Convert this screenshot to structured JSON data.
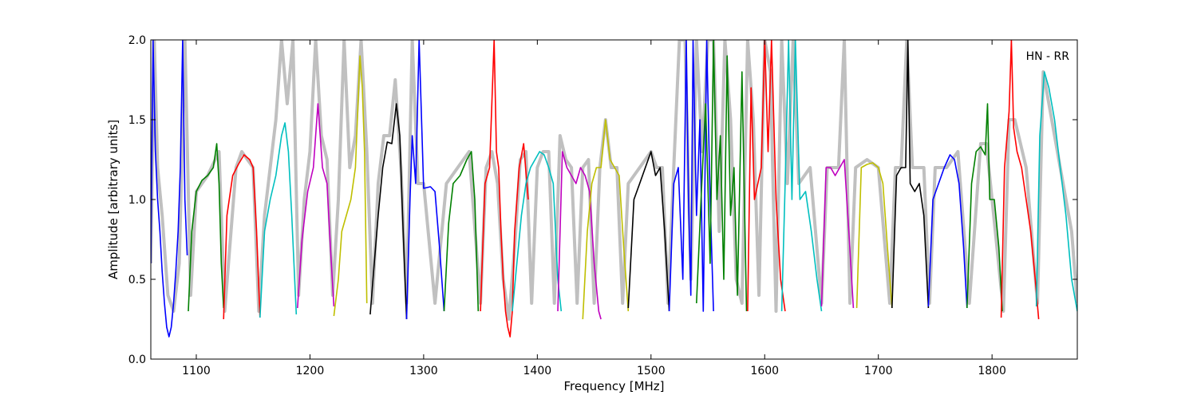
{
  "chart_data": {
    "type": "line",
    "title": "",
    "annotation": "HN - RR",
    "xlabel": "Frequency [MHz]",
    "ylabel": "Amplitude [arbitrary units]",
    "xlim": [
      1060,
      1875
    ],
    "ylim": [
      0.0,
      2.0
    ],
    "xticks": [
      1100,
      1200,
      1300,
      1400,
      1500,
      1600,
      1700,
      1800
    ],
    "yticks": [
      0.0,
      0.5,
      1.0,
      1.5,
      2.0
    ],
    "ytick_labels": [
      "0.0",
      "0.5",
      "1.0",
      "1.5",
      "2.0"
    ],
    "grid": false,
    "legend": "none",
    "background_series": {
      "color": "#c0c0c0",
      "description_hidden": true,
      "x": [
        1060,
        1063,
        1066,
        1070,
        1075,
        1080,
        1085,
        1090,
        1095,
        1100,
        1110,
        1120,
        1125,
        1135,
        1140,
        1150,
        1155,
        1160,
        1165,
        1170,
        1175,
        1180,
        1185,
        1190,
        1195,
        1200,
        1205,
        1210,
        1215,
        1220,
        1225,
        1230,
        1235,
        1240,
        1245,
        1250,
        1255,
        1260,
        1265,
        1270,
        1275,
        1280,
        1285,
        1290,
        1295,
        1300,
        1310,
        1320,
        1330,
        1340,
        1350,
        1355,
        1360,
        1365,
        1370,
        1375,
        1380,
        1385,
        1390,
        1395,
        1400,
        1405,
        1410,
        1415,
        1420,
        1425,
        1430,
        1435,
        1440,
        1445,
        1450,
        1455,
        1460,
        1465,
        1470,
        1475,
        1480,
        1490,
        1500,
        1505,
        1510,
        1515,
        1520,
        1525,
        1530,
        1535,
        1540,
        1545,
        1550,
        1555,
        1560,
        1565,
        1570,
        1575,
        1580,
        1585,
        1590,
        1595,
        1600,
        1605,
        1610,
        1615,
        1620,
        1625,
        1630,
        1640,
        1650,
        1655,
        1660,
        1665,
        1670,
        1675,
        1680,
        1690,
        1700,
        1710,
        1715,
        1720,
        1725,
        1730,
        1740,
        1745,
        1750,
        1760,
        1770,
        1780,
        1790,
        1795,
        1800,
        1810,
        1815,
        1820,
        1830,
        1840,
        1845,
        1850,
        1860,
        1870,
        1875
      ],
      "y": [
        0.6,
        2.0,
        1.2,
        0.9,
        0.4,
        0.3,
        0.6,
        2.0,
        0.4,
        1.05,
        1.15,
        1.3,
        0.3,
        1.2,
        1.3,
        1.2,
        0.3,
        0.9,
        1.2,
        1.5,
        2.0,
        1.6,
        2.0,
        0.4,
        1.0,
        1.3,
        2.0,
        1.4,
        1.25,
        0.4,
        1.0,
        2.0,
        1.2,
        1.4,
        2.0,
        1.3,
        0.35,
        1.1,
        1.4,
        1.4,
        1.75,
        1.2,
        0.35,
        2.0,
        1.1,
        1.1,
        0.35,
        1.1,
        1.2,
        1.3,
        0.35,
        1.2,
        1.3,
        1.1,
        0.5,
        0.25,
        0.7,
        1.25,
        1.3,
        0.35,
        1.2,
        1.3,
        1.3,
        0.35,
        1.4,
        1.25,
        1.2,
        0.35,
        1.2,
        1.25,
        0.35,
        1.2,
        1.5,
        1.2,
        1.2,
        0.35,
        1.1,
        1.2,
        1.3,
        1.2,
        1.2,
        0.35,
        1.2,
        2.0,
        2.0,
        0.5,
        2.0,
        1.3,
        2.0,
        2.0,
        0.8,
        2.0,
        1.5,
        0.5,
        0.35,
        2.0,
        1.5,
        0.4,
        2.0,
        1.8,
        0.3,
        2.0,
        1.1,
        2.0,
        1.1,
        1.2,
        0.35,
        1.2,
        1.2,
        1.2,
        2.0,
        0.35,
        1.2,
        1.25,
        1.2,
        0.35,
        1.2,
        1.2,
        2.0,
        1.2,
        1.2,
        0.35,
        1.2,
        1.2,
        1.3,
        0.35,
        1.35,
        1.35,
        1.0,
        0.3,
        1.5,
        1.5,
        1.2,
        0.35,
        1.8,
        1.6,
        1.2,
        0.8,
        0.35
      ]
    },
    "series": [
      {
        "color": "#0000ff",
        "x": [
          1060,
          1062,
          1064,
          1066,
          1068,
          1070,
          1072,
          1074,
          1076,
          1078,
          1080,
          1082,
          1084,
          1086,
          1088,
          1090,
          1092
        ],
        "y": [
          0.6,
          2.0,
          1.3,
          1.0,
          0.8,
          0.55,
          0.35,
          0.2,
          0.14,
          0.2,
          0.35,
          0.55,
          0.8,
          1.2,
          2.0,
          1.0,
          0.65
        ]
      },
      {
        "color": "#008000",
        "x": [
          1093,
          1096,
          1100,
          1105,
          1110,
          1115,
          1118,
          1120,
          1122,
          1124
        ],
        "y": [
          0.3,
          0.8,
          1.05,
          1.12,
          1.15,
          1.2,
          1.35,
          1.1,
          0.6,
          0.32
        ]
      },
      {
        "color": "#ff0000",
        "x": [
          1124,
          1127,
          1132,
          1137,
          1142,
          1147,
          1150,
          1153,
          1156
        ],
        "y": [
          0.25,
          0.9,
          1.15,
          1.22,
          1.28,
          1.25,
          1.2,
          0.8,
          0.26
        ]
      },
      {
        "color": "#00bfbf",
        "x": [
          1156,
          1160,
          1165,
          1170,
          1175,
          1178,
          1181,
          1184,
          1188
        ],
        "y": [
          0.26,
          0.8,
          1.0,
          1.15,
          1.4,
          1.48,
          1.3,
          0.9,
          0.28
        ]
      },
      {
        "color": "#bf00bf",
        "x": [
          1189,
          1193,
          1198,
          1203,
          1207,
          1211,
          1215,
          1218,
          1221
        ],
        "y": [
          0.32,
          0.75,
          1.05,
          1.2,
          1.6,
          1.2,
          1.1,
          0.7,
          0.33
        ]
      },
      {
        "color": "#bfbf00",
        "x": [
          1221,
          1225,
          1228,
          1232,
          1236,
          1240,
          1244,
          1246,
          1248,
          1250
        ],
        "y": [
          0.27,
          0.5,
          0.8,
          0.9,
          1.0,
          1.2,
          1.9,
          1.7,
          1.3,
          0.35
        ]
      },
      {
        "color": "#000000",
        "x": [
          1253,
          1256,
          1260,
          1264,
          1268,
          1272,
          1276,
          1279,
          1282,
          1285
        ],
        "y": [
          0.28,
          0.55,
          0.9,
          1.2,
          1.36,
          1.35,
          1.6,
          1.4,
          0.8,
          0.25
        ]
      },
      {
        "color": "#0000ff",
        "x": [
          1285,
          1288,
          1290,
          1293,
          1296,
          1300,
          1306,
          1310,
          1314,
          1318
        ],
        "y": [
          0.25,
          1.0,
          1.4,
          1.1,
          2.0,
          1.07,
          1.08,
          1.05,
          0.7,
          0.3
        ]
      },
      {
        "color": "#008000",
        "x": [
          1318,
          1322,
          1326,
          1332,
          1338,
          1342,
          1345,
          1348
        ],
        "y": [
          0.3,
          0.85,
          1.1,
          1.15,
          1.25,
          1.3,
          1.0,
          0.3
        ]
      },
      {
        "color": "#ff0000",
        "x": [
          1350,
          1354,
          1358,
          1362,
          1364,
          1366,
          1368,
          1370,
          1372,
          1374,
          1376,
          1378,
          1380,
          1384,
          1388,
          1392
        ],
        "y": [
          0.3,
          1.1,
          1.2,
          2.0,
          1.3,
          1.2,
          0.8,
          0.5,
          0.3,
          0.2,
          0.14,
          0.3,
          0.8,
          1.2,
          1.35,
          1.0
        ]
      },
      {
        "color": "#00bfbf",
        "x": [
          1378,
          1382,
          1386,
          1390,
          1394,
          1398,
          1402,
          1406,
          1410,
          1414,
          1418,
          1421
        ],
        "y": [
          0.3,
          0.6,
          0.9,
          1.1,
          1.2,
          1.25,
          1.3,
          1.28,
          1.2,
          1.1,
          0.5,
          0.3
        ]
      },
      {
        "color": "#bf00bf",
        "x": [
          1418,
          1422,
          1426,
          1430,
          1434,
          1438,
          1442,
          1446,
          1450,
          1454,
          1456
        ],
        "y": [
          0.3,
          1.3,
          1.2,
          1.15,
          1.1,
          1.2,
          1.15,
          1.05,
          0.6,
          0.3,
          0.25
        ]
      },
      {
        "color": "#bfbf00",
        "x": [
          1440,
          1444,
          1448,
          1452,
          1456,
          1460,
          1464,
          1468,
          1472,
          1476,
          1480
        ],
        "y": [
          0.25,
          0.8,
          1.1,
          1.2,
          1.2,
          1.5,
          1.25,
          1.2,
          1.15,
          0.7,
          0.3
        ]
      },
      {
        "color": "#000000",
        "x": [
          1480,
          1485,
          1490,
          1495,
          1500,
          1504,
          1508,
          1512,
          1516
        ],
        "y": [
          0.32,
          1.0,
          1.1,
          1.2,
          1.3,
          1.15,
          1.2,
          0.8,
          0.3
        ]
      },
      {
        "color": "#0000ff",
        "x": [
          1516,
          1520,
          1524,
          1528,
          1531,
          1533,
          1535,
          1537,
          1540,
          1543,
          1546,
          1549,
          1552,
          1555
        ],
        "y": [
          0.3,
          1.1,
          1.2,
          0.5,
          2.0,
          1.0,
          0.4,
          2.0,
          0.9,
          1.5,
          0.3,
          2.0,
          1.0,
          0.3
        ]
      },
      {
        "color": "#008000",
        "x": [
          1540,
          1544,
          1548,
          1552,
          1555,
          1558,
          1561,
          1564,
          1567,
          1570,
          1573,
          1576,
          1580,
          1584
        ],
        "y": [
          0.35,
          1.0,
          1.6,
          0.6,
          2.0,
          1.0,
          1.4,
          0.5,
          1.9,
          0.9,
          1.2,
          0.4,
          1.8,
          0.3
        ]
      },
      {
        "color": "#ff0000",
        "x": [
          1585,
          1588,
          1591,
          1594,
          1597,
          1600,
          1603,
          1606,
          1610,
          1614,
          1618
        ],
        "y": [
          0.3,
          1.7,
          1.0,
          1.1,
          1.2,
          2.0,
          1.3,
          2.0,
          1.0,
          0.5,
          0.3
        ]
      },
      {
        "color": "#00bfbf",
        "x": [
          1615,
          1618,
          1621,
          1624,
          1627,
          1631,
          1636,
          1641,
          1646,
          1650
        ],
        "y": [
          0.3,
          1.1,
          2.0,
          1.0,
          2.0,
          1.0,
          1.05,
          0.8,
          0.5,
          0.3
        ]
      },
      {
        "color": "#bf00bf",
        "x": [
          1650,
          1654,
          1658,
          1662,
          1666,
          1670,
          1674,
          1678
        ],
        "y": [
          0.33,
          1.2,
          1.2,
          1.15,
          1.2,
          1.25,
          0.8,
          0.32
        ]
      },
      {
        "color": "#bfbf00",
        "x": [
          1681,
          1685,
          1690,
          1695,
          1700,
          1704,
          1708,
          1712
        ],
        "y": [
          0.32,
          1.2,
          1.22,
          1.23,
          1.2,
          1.1,
          0.7,
          0.32
        ]
      },
      {
        "color": "#000000",
        "x": [
          1712,
          1716,
          1720,
          1724,
          1726,
          1728,
          1732,
          1736,
          1740,
          1744
        ],
        "y": [
          0.32,
          1.15,
          1.2,
          1.2,
          2.0,
          1.1,
          1.05,
          1.1,
          0.9,
          0.32
        ]
      },
      {
        "color": "#0000ff",
        "x": [
          1744,
          1748,
          1753,
          1758,
          1763,
          1767,
          1771,
          1775,
          1778
        ],
        "y": [
          0.33,
          1.0,
          1.1,
          1.2,
          1.28,
          1.25,
          1.1,
          0.7,
          0.32
        ]
      },
      {
        "color": "#008000",
        "x": [
          1778,
          1782,
          1786,
          1790,
          1794,
          1796,
          1798,
          1802,
          1806,
          1809
        ],
        "y": [
          0.32,
          1.1,
          1.3,
          1.33,
          1.28,
          1.6,
          1.0,
          1.0,
          0.7,
          0.3
        ]
      },
      {
        "color": "#ff0000",
        "x": [
          1808,
          1811,
          1815,
          1817,
          1819,
          1822,
          1826,
          1830,
          1834,
          1838,
          1841
        ],
        "y": [
          0.26,
          1.2,
          1.55,
          2.0,
          1.45,
          1.3,
          1.2,
          1.0,
          0.8,
          0.5,
          0.25
        ]
      },
      {
        "color": "#00bfbf",
        "x": [
          1839,
          1842,
          1846,
          1850,
          1855,
          1860,
          1865,
          1870,
          1875
        ],
        "y": [
          0.33,
          1.4,
          1.8,
          1.7,
          1.5,
          1.2,
          0.9,
          0.5,
          0.3
        ]
      }
    ]
  }
}
